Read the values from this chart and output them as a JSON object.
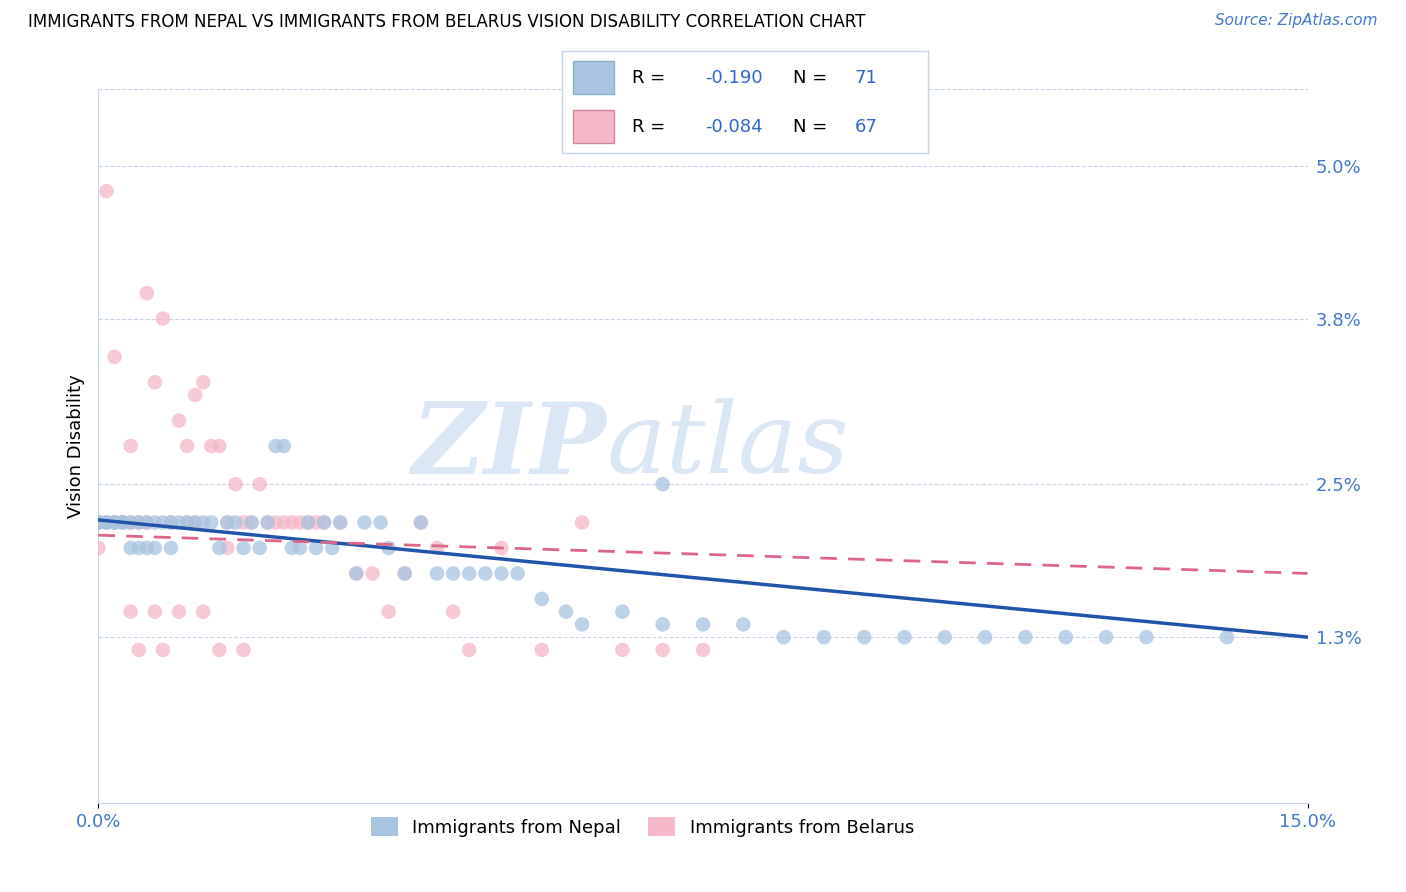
{
  "title": "IMMIGRANTS FROM NEPAL VS IMMIGRANTS FROM BELARUS VISION DISABILITY CORRELATION CHART",
  "source": "Source: ZipAtlas.com",
  "ylabel": "Vision Disability",
  "nepal_color": "#a8c4e0",
  "belarus_color": "#f4b8c8",
  "nepal_line_color": "#2255aa",
  "belarus_line_color": "#dd6688",
  "watermark_zip": "ZIP",
  "watermark_atlas": "atlas",
  "xlim": [
    0.0,
    0.15
  ],
  "ylim": [
    0.0,
    0.056
  ],
  "ytick_values": [
    0.013,
    0.025,
    0.038,
    0.05
  ],
  "ytick_labels": [
    "1.3%",
    "2.5%",
    "3.8%",
    "5.0%"
  ],
  "xtick_values": [
    0.0,
    0.15
  ],
  "xtick_labels": [
    "0.0%",
    "15.0%"
  ],
  "nepal_R": "-0.190",
  "nepal_N": "71",
  "belarus_R": "-0.084",
  "belarus_N": "67",
  "nepal_line_x": [
    0.0,
    0.15
  ],
  "nepal_line_y": [
    0.0222,
    0.013
  ],
  "belarus_line_x": [
    0.0,
    0.15
  ],
  "belarus_line_y": [
    0.021,
    0.018
  ],
  "nepal_scatter_x": [
    0.0,
    0.0,
    0.001,
    0.001,
    0.002,
    0.002,
    0.003,
    0.003,
    0.004,
    0.004,
    0.005,
    0.005,
    0.006,
    0.006,
    0.007,
    0.007,
    0.008,
    0.009,
    0.009,
    0.01,
    0.011,
    0.012,
    0.013,
    0.014,
    0.015,
    0.016,
    0.017,
    0.018,
    0.019,
    0.02,
    0.021,
    0.022,
    0.023,
    0.024,
    0.025,
    0.026,
    0.027,
    0.028,
    0.029,
    0.03,
    0.032,
    0.033,
    0.035,
    0.036,
    0.038,
    0.04,
    0.042,
    0.044,
    0.046,
    0.048,
    0.05,
    0.052,
    0.055,
    0.058,
    0.06,
    0.065,
    0.07,
    0.075,
    0.08,
    0.085,
    0.09,
    0.095,
    0.1,
    0.105,
    0.11,
    0.115,
    0.12,
    0.125,
    0.13,
    0.14,
    0.07
  ],
  "nepal_scatter_y": [
    0.022,
    0.022,
    0.022,
    0.022,
    0.022,
    0.022,
    0.022,
    0.022,
    0.02,
    0.022,
    0.022,
    0.02,
    0.02,
    0.022,
    0.02,
    0.022,
    0.022,
    0.02,
    0.022,
    0.022,
    0.022,
    0.022,
    0.022,
    0.022,
    0.02,
    0.022,
    0.022,
    0.02,
    0.022,
    0.02,
    0.022,
    0.028,
    0.028,
    0.02,
    0.02,
    0.022,
    0.02,
    0.022,
    0.02,
    0.022,
    0.018,
    0.022,
    0.022,
    0.02,
    0.018,
    0.022,
    0.018,
    0.018,
    0.018,
    0.018,
    0.018,
    0.018,
    0.016,
    0.015,
    0.014,
    0.015,
    0.014,
    0.014,
    0.014,
    0.013,
    0.013,
    0.013,
    0.013,
    0.013,
    0.013,
    0.013,
    0.013,
    0.013,
    0.013,
    0.013,
    0.025
  ],
  "belarus_scatter_x": [
    0.0,
    0.0,
    0.0,
    0.0,
    0.001,
    0.001,
    0.002,
    0.002,
    0.003,
    0.003,
    0.004,
    0.004,
    0.005,
    0.005,
    0.006,
    0.007,
    0.008,
    0.009,
    0.01,
    0.011,
    0.012,
    0.013,
    0.014,
    0.015,
    0.016,
    0.017,
    0.018,
    0.019,
    0.02,
    0.021,
    0.022,
    0.023,
    0.024,
    0.025,
    0.026,
    0.027,
    0.028,
    0.03,
    0.032,
    0.034,
    0.036,
    0.038,
    0.04,
    0.042,
    0.044,
    0.046,
    0.05,
    0.055,
    0.06,
    0.065,
    0.07,
    0.075,
    0.004,
    0.007,
    0.01,
    0.013,
    0.015,
    0.018,
    0.008,
    0.005,
    0.003,
    0.006,
    0.009,
    0.012,
    0.002,
    0.011,
    0.016
  ],
  "belarus_scatter_y": [
    0.022,
    0.02,
    0.022,
    0.022,
    0.048,
    0.022,
    0.035,
    0.022,
    0.022,
    0.022,
    0.022,
    0.028,
    0.022,
    0.022,
    0.04,
    0.033,
    0.038,
    0.022,
    0.03,
    0.028,
    0.032,
    0.033,
    0.028,
    0.028,
    0.02,
    0.025,
    0.022,
    0.022,
    0.025,
    0.022,
    0.022,
    0.022,
    0.022,
    0.022,
    0.022,
    0.022,
    0.022,
    0.022,
    0.018,
    0.018,
    0.015,
    0.018,
    0.022,
    0.02,
    0.015,
    0.012,
    0.02,
    0.012,
    0.022,
    0.012,
    0.012,
    0.012,
    0.015,
    0.015,
    0.015,
    0.015,
    0.012,
    0.012,
    0.012,
    0.012,
    0.022,
    0.022,
    0.022,
    0.022,
    0.022,
    0.022,
    0.022
  ]
}
